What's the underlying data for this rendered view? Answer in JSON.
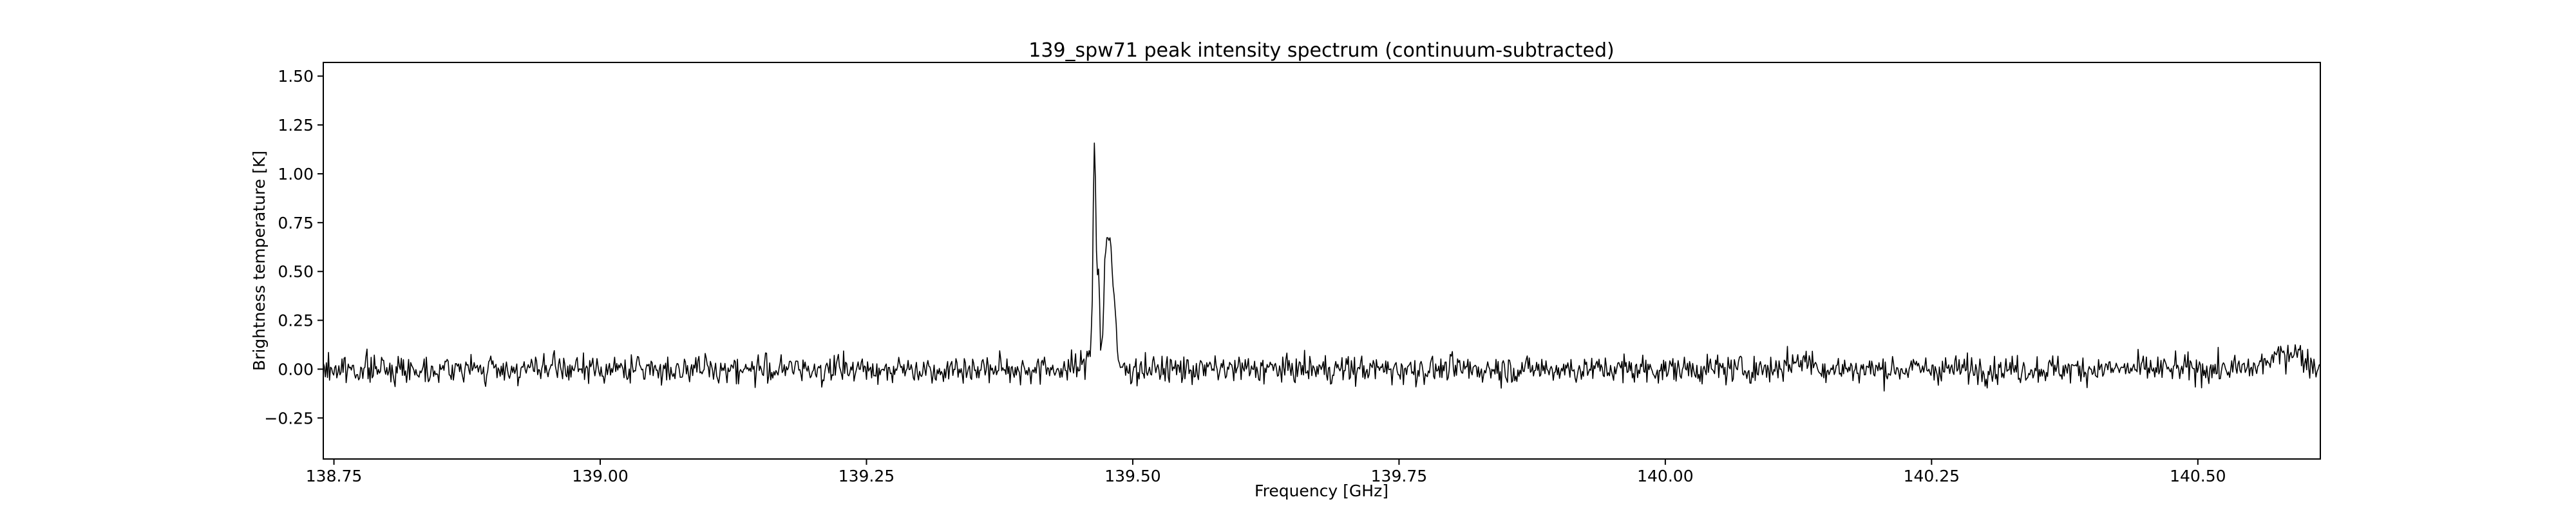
{
  "chart_data": {
    "type": "line",
    "title": "139_spw71 peak intensity spectrum (continuum-subtracted)",
    "xlabel": "Frequency [GHz]",
    "ylabel": "Brightness temperature [K]",
    "xlim": [
      138.74,
      140.615
    ],
    "ylim": [
      -0.46,
      1.57
    ],
    "xticks": [
      138.75,
      139.0,
      139.25,
      139.5,
      139.75,
      140.0,
      140.25,
      140.5
    ],
    "xtick_labels": [
      "138.75",
      "139.00",
      "139.25",
      "139.50",
      "139.75",
      "140.00",
      "140.25",
      "140.50"
    ],
    "yticks": [
      -0.25,
      0.0,
      0.25,
      0.5,
      0.75,
      1.0,
      1.25,
      1.5
    ],
    "ytick_labels": [
      "−0.25",
      "0.00",
      "0.25",
      "0.50",
      "0.75",
      "1.00",
      "1.25",
      "1.50"
    ],
    "grid": false,
    "line_color": "#000000",
    "noise": {
      "baseline": 0.0,
      "rms": 0.05,
      "channel_width_ghz": 0.000977
    },
    "series": [
      {
        "x": [
          138.74,
          138.8,
          138.85,
          138.9,
          138.95,
          139.0,
          139.05,
          139.1,
          139.15,
          139.2,
          139.25,
          139.3,
          139.35,
          139.4,
          139.44,
          139.455,
          139.46,
          139.462,
          139.463,
          139.464,
          139.465,
          139.466,
          139.467,
          139.468,
          139.47,
          139.472,
          139.474,
          139.476,
          139.478,
          139.48,
          139.482,
          139.484,
          139.486,
          139.49,
          139.5,
          139.55,
          139.6,
          139.65,
          139.7,
          139.75,
          139.8,
          139.85,
          139.9,
          139.95,
          140.0,
          140.05,
          140.1,
          140.13,
          140.15,
          140.2,
          140.25,
          140.3,
          140.35,
          140.4,
          140.45,
          140.5,
          140.55,
          140.59,
          140.6,
          140.615
        ],
        "y": [
          0.0,
          0.0,
          0.0,
          0.0,
          0.0,
          0.0,
          0.0,
          0.0,
          0.0,
          0.0,
          0.0,
          0.0,
          0.0,
          0.0,
          0.0,
          0.02,
          0.1,
          0.35,
          0.85,
          1.22,
          1.0,
          0.6,
          0.45,
          0.55,
          0.05,
          0.2,
          0.62,
          0.7,
          0.65,
          0.6,
          0.35,
          0.25,
          0.05,
          0.0,
          0.0,
          0.0,
          0.0,
          0.0,
          0.0,
          0.0,
          0.0,
          0.0,
          0.0,
          0.0,
          0.0,
          0.0,
          0.0,
          0.05,
          0.0,
          0.0,
          0.0,
          0.0,
          0.0,
          0.0,
          0.0,
          0.0,
          0.0,
          0.1,
          0.05,
          0.0
        ]
      }
    ]
  }
}
